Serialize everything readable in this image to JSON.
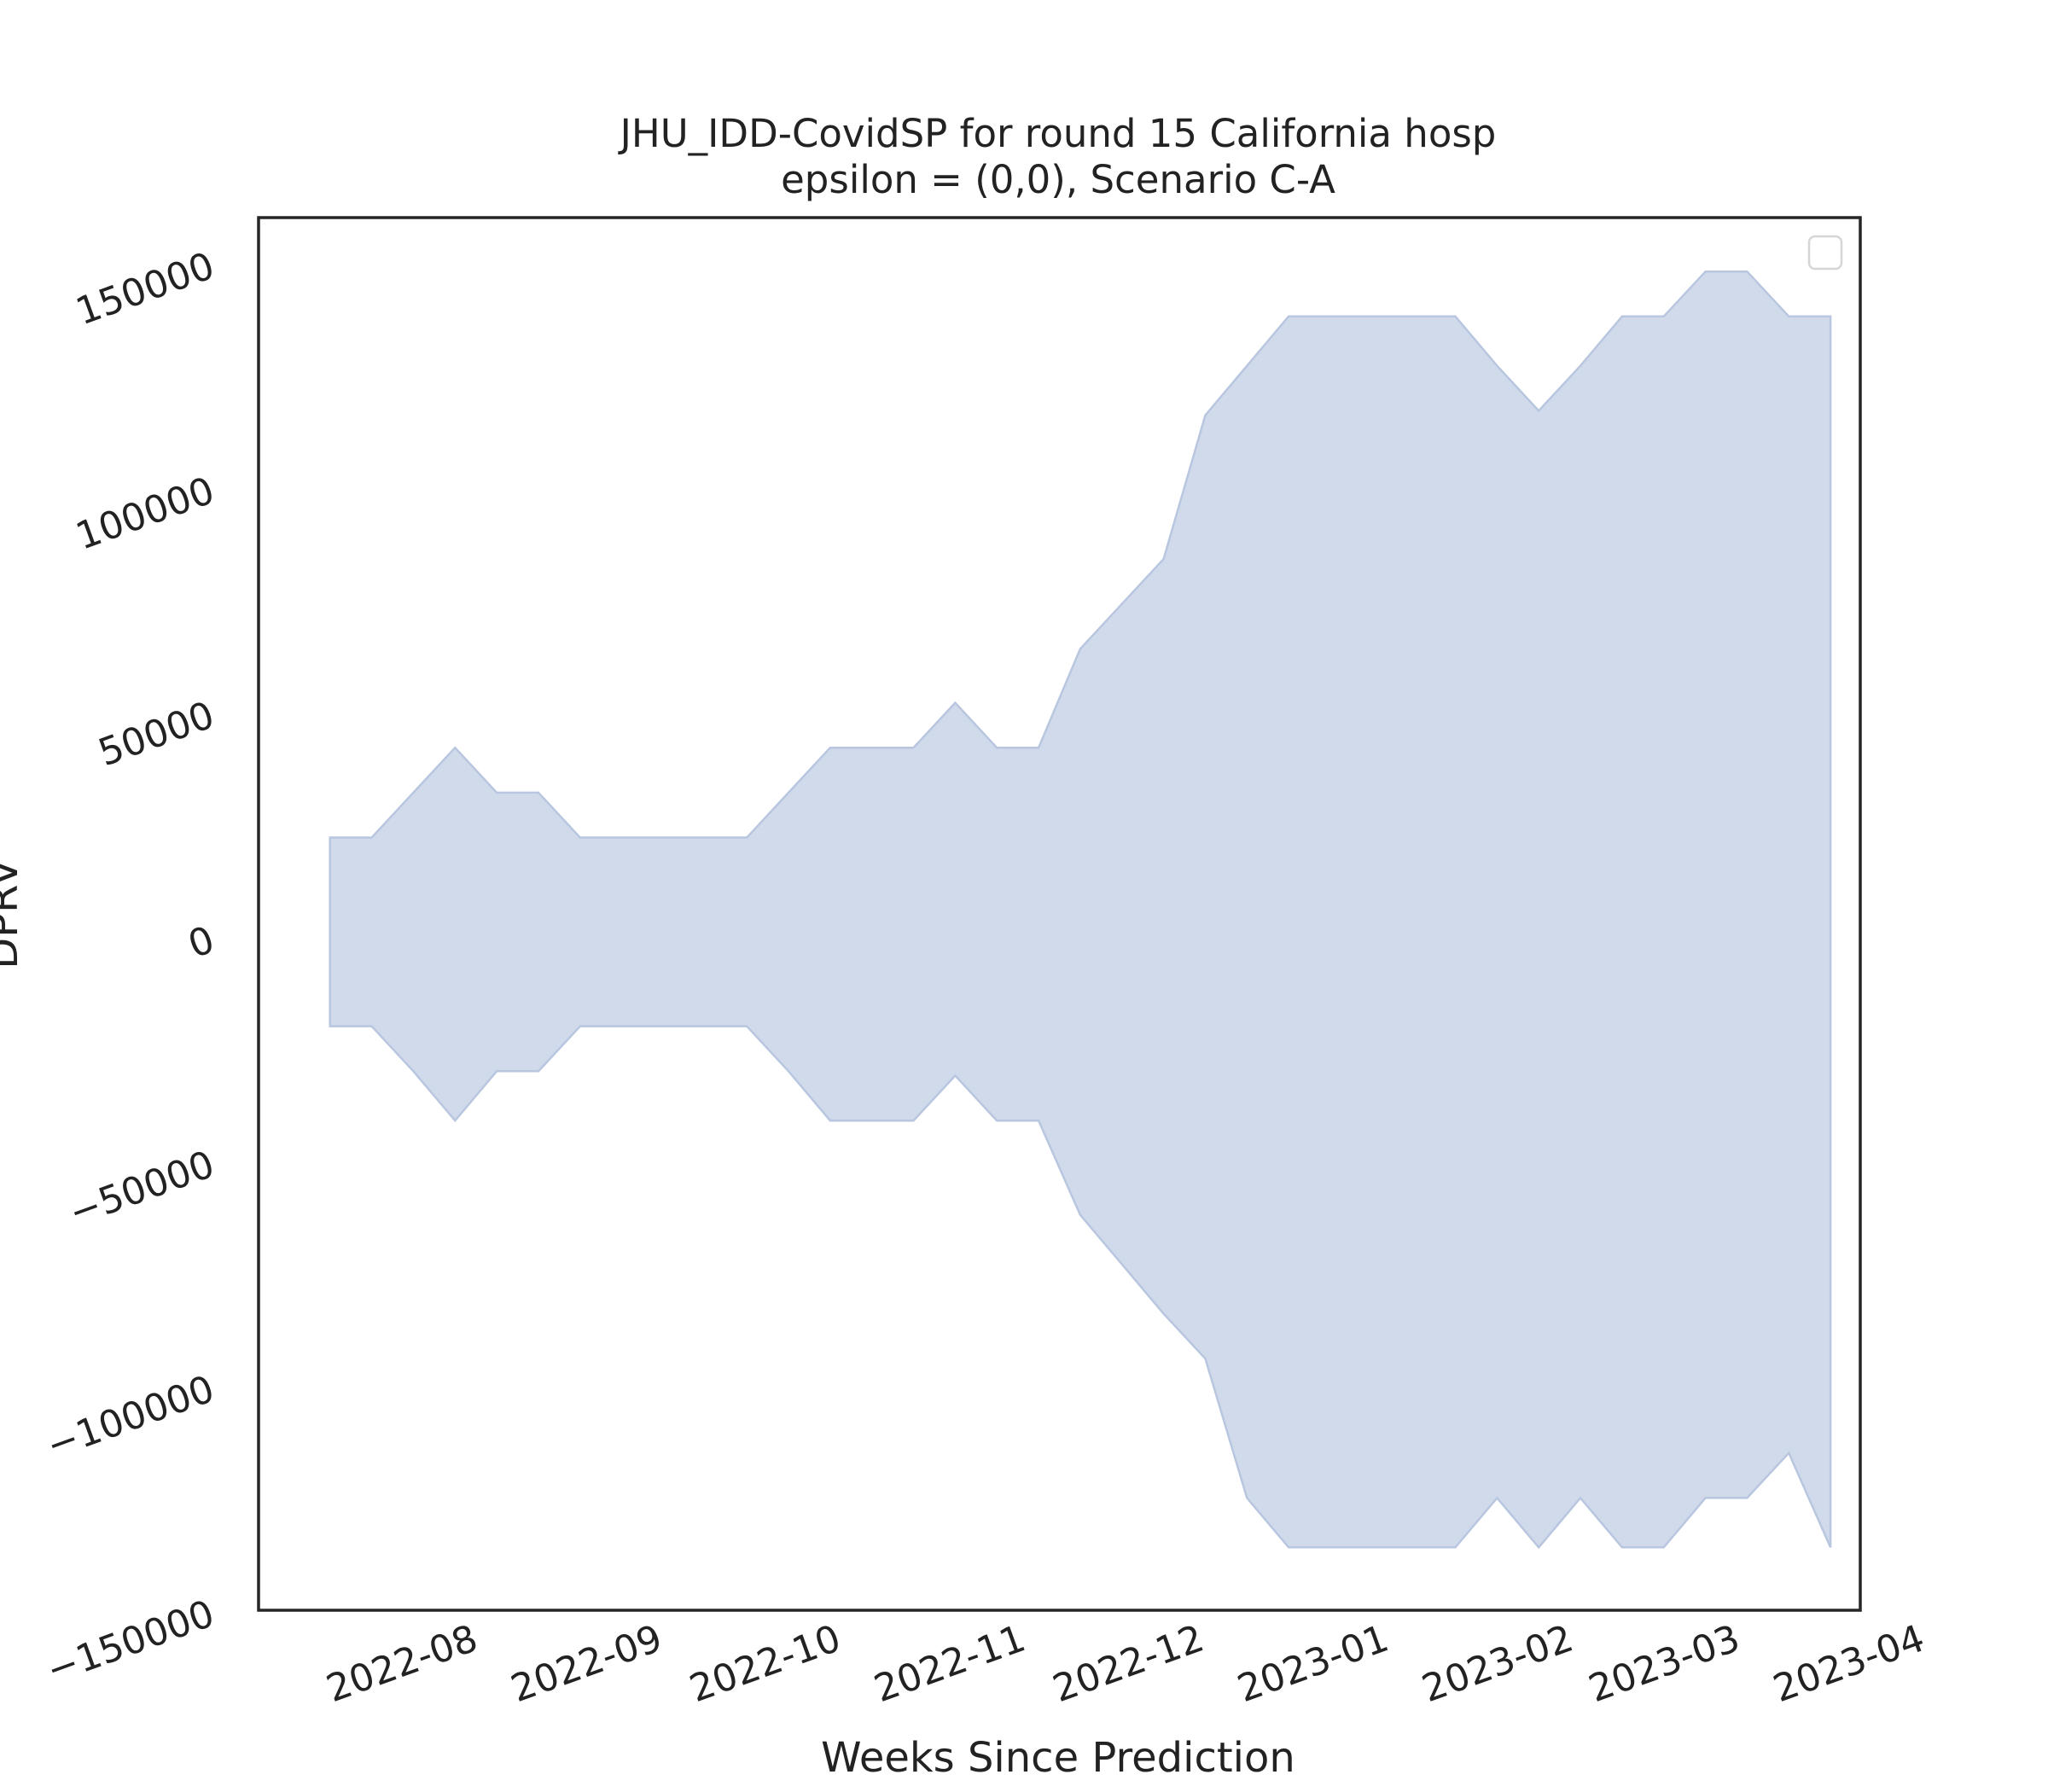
{
  "chart_data": {
    "type": "area",
    "title": "JHU_IDD-CovidSP for round 15 California hosp",
    "subtitle": "epsilon = (0,0), Scenario C-A",
    "xlabel": "Weeks Since Prediction",
    "ylabel": "DPRV",
    "x_range": [
      "2022-07-08",
      "2023-04-03"
    ],
    "ylim": [
      -150000,
      160000
    ],
    "x_ticks": [
      "2022-08",
      "2022-09",
      "2022-10",
      "2022-11",
      "2022-12",
      "2023-01",
      "2023-02",
      "2023-03",
      "2023-04"
    ],
    "y_ticks": [
      150000,
      100000,
      50000,
      0,
      -50000,
      -100000,
      -150000
    ],
    "grid": false,
    "legend": "top-right",
    "fill_color": "#d1daeb",
    "edge_color": "#b8c6df",
    "band": {
      "x": [
        "2022-07-20",
        "2022-07-27",
        "2022-08-03",
        "2022-08-10",
        "2022-08-17",
        "2022-08-24",
        "2022-08-31",
        "2022-09-07",
        "2022-09-14",
        "2022-09-21",
        "2022-09-28",
        "2022-10-05",
        "2022-10-12",
        "2022-10-19",
        "2022-10-26",
        "2022-11-02",
        "2022-11-09",
        "2022-11-16",
        "2022-11-23",
        "2022-11-30",
        "2022-12-07",
        "2022-12-14",
        "2022-12-21",
        "2022-12-28",
        "2023-01-04",
        "2023-01-11",
        "2023-01-18",
        "2023-01-25",
        "2023-02-01",
        "2023-02-08",
        "2023-02-15",
        "2023-02-22",
        "2023-03-01",
        "2023-03-08",
        "2023-03-15",
        "2023-03-22"
      ],
      "upper": [
        22000,
        22000,
        32000,
        42000,
        32000,
        32000,
        22000,
        22000,
        22000,
        22000,
        22000,
        32000,
        42000,
        42000,
        42000,
        52000,
        42000,
        42000,
        64000,
        74000,
        84000,
        116000,
        127000,
        138000,
        138000,
        138000,
        138000,
        138000,
        127000,
        117000,
        127000,
        138000,
        138000,
        148000,
        148000,
        138000
      ],
      "lower": [
        -20000,
        -20000,
        -30000,
        -41000,
        -30000,
        -30000,
        -20000,
        -20000,
        -20000,
        -20000,
        -20000,
        -30000,
        -41000,
        -41000,
        -41000,
        -31000,
        -41000,
        -41000,
        -62000,
        -73000,
        -84000,
        -94000,
        -125000,
        -136000,
        -136000,
        -136000,
        -136000,
        -136000,
        -125000,
        -136000,
        -125000,
        -136000,
        -136000,
        -125000,
        -125000,
        -115000
      ]
    },
    "band_end": {
      "x": "2023-03-29",
      "upper": 138000,
      "lower": -136000
    }
  }
}
